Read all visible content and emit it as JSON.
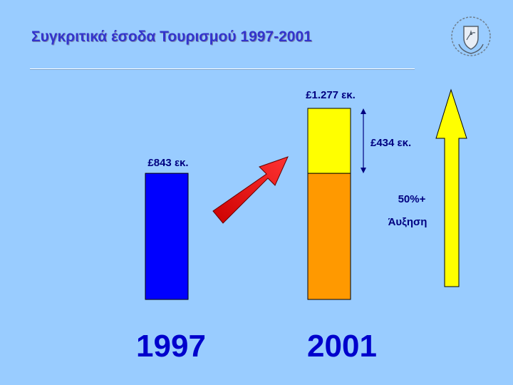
{
  "slide": {
    "title": "Συγκριτικά έσοδα Τουρισμού 1997-2001"
  },
  "colors": {
    "background": "#99ccff",
    "title": "#3333cc",
    "bar_1997": "#0000ff",
    "bar_2001_base": "#ff9900",
    "bar_2001_increase": "#ffff00",
    "trend_arrow": "#ff0000",
    "growth_arrow": "#ffff00",
    "label": "#000080"
  },
  "chart_data": {
    "type": "bar",
    "categories": [
      "1997",
      "2001"
    ],
    "values": [
      843,
      1277
    ],
    "stack_2001": {
      "base": 843,
      "increase": 434
    },
    "data_labels": [
      "£843 εκ.",
      "£1.277 εκ."
    ],
    "increase_label": "£434 εκ.",
    "growth_label": "50%+",
    "growth_sublabel": "Άυξηση",
    "title": "Συγκριτικά έσοδα Τουρισμού 1997-2001",
    "ylim": [
      0,
      1277
    ],
    "grid": false
  }
}
